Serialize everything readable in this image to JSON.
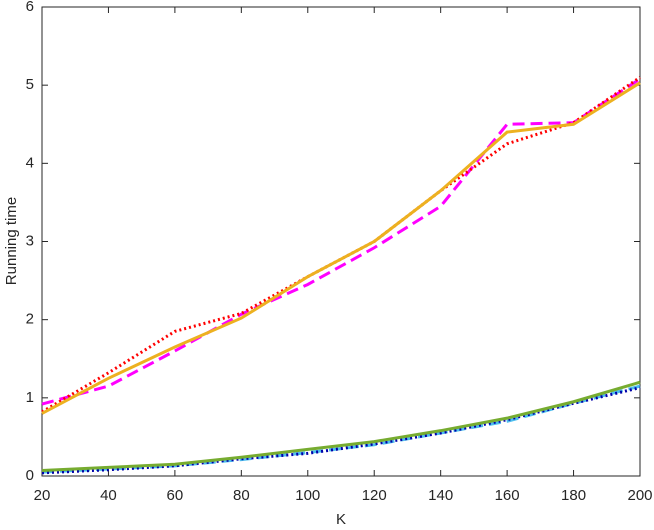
{
  "chart_data": {
    "type": "line",
    "xlabel": "K",
    "ylabel": "Running time",
    "x": [
      20,
      40,
      60,
      80,
      100,
      120,
      140,
      160,
      180,
      200
    ],
    "xlim": [
      20,
      200
    ],
    "xticks": [
      20,
      40,
      60,
      80,
      100,
      120,
      140,
      160,
      180,
      200
    ],
    "ylim": [
      0,
      6
    ],
    "yticks": [
      0,
      1,
      2,
      3,
      4,
      5,
      6
    ],
    "series": [
      {
        "color": "#ff00ff",
        "dash": "dashed",
        "values": [
          0.92,
          1.15,
          1.6,
          2.07,
          2.45,
          2.92,
          3.45,
          4.5,
          4.52,
          5.08
        ]
      },
      {
        "color": "#ff0000",
        "dash": "dotted",
        "values": [
          0.82,
          1.32,
          1.85,
          2.08,
          2.55,
          3.0,
          3.65,
          4.25,
          4.52,
          5.1
        ]
      },
      {
        "color": "#edb120",
        "dash": "solid",
        "values": [
          0.8,
          1.25,
          1.65,
          2.02,
          2.55,
          3.0,
          3.65,
          4.4,
          4.5,
          5.03
        ]
      },
      {
        "color": "#4dbeee",
        "dash": "dashed",
        "values": [
          0.05,
          0.09,
          0.13,
          0.21,
          0.3,
          0.4,
          0.55,
          0.7,
          0.93,
          1.15
        ]
      },
      {
        "color": "#0000aa",
        "dash": "dotted",
        "values": [
          0.04,
          0.08,
          0.13,
          0.22,
          0.29,
          0.41,
          0.55,
          0.72,
          0.93,
          1.13
        ]
      },
      {
        "color": "#77ac30",
        "dash": "solid",
        "values": [
          0.07,
          0.11,
          0.15,
          0.24,
          0.34,
          0.44,
          0.58,
          0.74,
          0.95,
          1.2
        ]
      }
    ]
  }
}
